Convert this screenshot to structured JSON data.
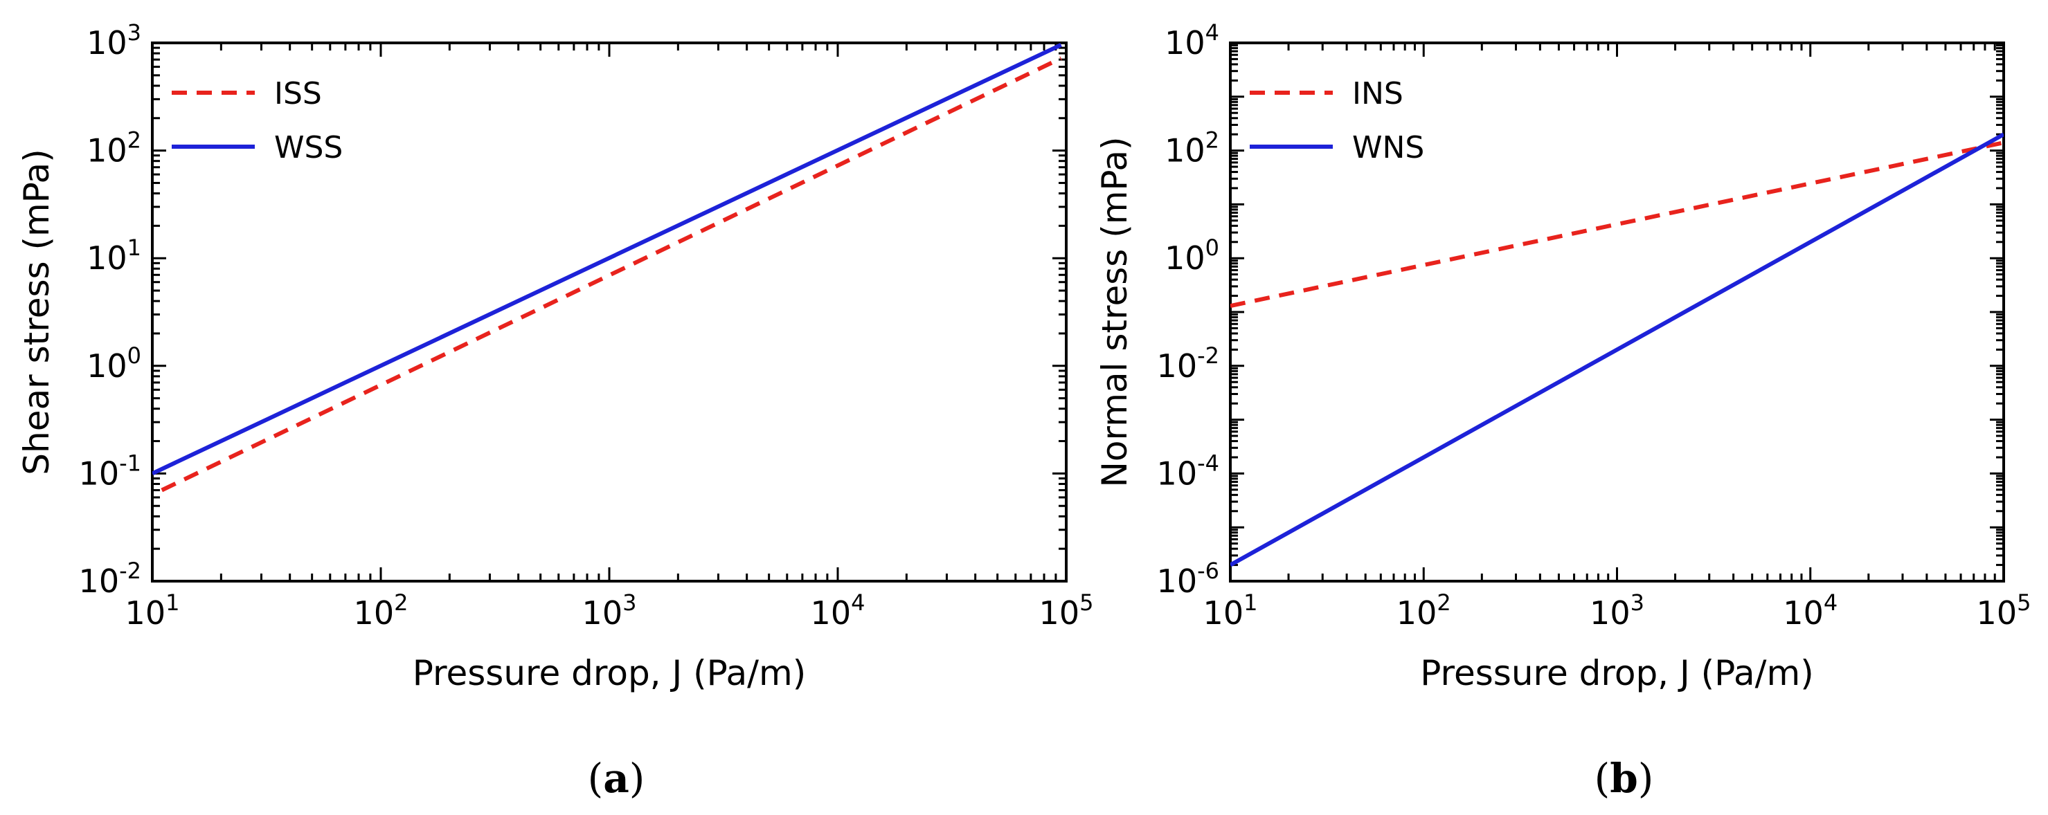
{
  "chart_data": [
    {
      "type": "line",
      "caption_letter": "a",
      "xlabel": "Pressure drop, J (Pa/m)",
      "ylabel": "Shear stress (mPa)",
      "x_scale": "log",
      "y_scale": "log",
      "xlim": [
        10,
        100000
      ],
      "ylim": [
        0.01,
        1000
      ],
      "x_ticks": [
        {
          "mant": "10",
          "exp": "1",
          "value": 10
        },
        {
          "mant": "10",
          "exp": "2",
          "value": 100
        },
        {
          "mant": "10",
          "exp": "3",
          "value": 1000
        },
        {
          "mant": "10",
          "exp": "4",
          "value": 10000
        },
        {
          "mant": "10",
          "exp": "5",
          "value": 100000
        }
      ],
      "y_ticks": [
        {
          "mant": "10",
          "exp": "-2",
          "value": 0.01
        },
        {
          "mant": "10",
          "exp": "-1",
          "value": 0.1
        },
        {
          "mant": "10",
          "exp": "0",
          "value": 1
        },
        {
          "mant": "10",
          "exp": "1",
          "value": 10
        },
        {
          "mant": "10",
          "exp": "2",
          "value": 100
        },
        {
          "mant": "10",
          "exp": "3",
          "value": 1000
        }
      ],
      "grid": false,
      "legend_position": "top-left",
      "series": [
        {
          "name": "ISS",
          "color": "#e8231d",
          "dash": "dashed",
          "x": [
            11,
            95000
          ],
          "y": [
            0.07,
            720
          ]
        },
        {
          "name": "WSS",
          "color": "#1d22d8",
          "dash": "solid",
          "x": [
            10,
            95000
          ],
          "y": [
            0.1,
            960
          ]
        }
      ]
    },
    {
      "type": "line",
      "caption_letter": "b",
      "xlabel": "Pressure drop, J (Pa/m)",
      "ylabel": "Normal stress (mPa)",
      "x_scale": "log",
      "y_scale": "log",
      "xlim": [
        10,
        100000
      ],
      "ylim": [
        1e-06,
        10000
      ],
      "x_ticks": [
        {
          "mant": "10",
          "exp": "1",
          "value": 10
        },
        {
          "mant": "10",
          "exp": "2",
          "value": 100
        },
        {
          "mant": "10",
          "exp": "3",
          "value": 1000
        },
        {
          "mant": "10",
          "exp": "4",
          "value": 10000
        },
        {
          "mant": "10",
          "exp": "5",
          "value": 100000
        }
      ],
      "y_ticks": [
        {
          "mant": "10",
          "exp": "-6",
          "value": 1e-06
        },
        {
          "mant": "10",
          "exp": "-4",
          "value": 0.0001
        },
        {
          "mant": "10",
          "exp": "-2",
          "value": 0.01
        },
        {
          "mant": "10",
          "exp": "0",
          "value": 1
        },
        {
          "mant": "10",
          "exp": "2",
          "value": 100
        },
        {
          "mant": "10",
          "exp": "4",
          "value": 10000
        }
      ],
      "grid": false,
      "legend_position": "top-left",
      "series": [
        {
          "name": "INS",
          "color": "#e8231d",
          "dash": "dashed",
          "x": [
            10,
            100000
          ],
          "y": [
            0.13,
            140
          ]
        },
        {
          "name": "WNS",
          "color": "#1d22d8",
          "dash": "solid",
          "x": [
            10,
            100000
          ],
          "y": [
            2e-06,
            200
          ]
        }
      ]
    }
  ]
}
